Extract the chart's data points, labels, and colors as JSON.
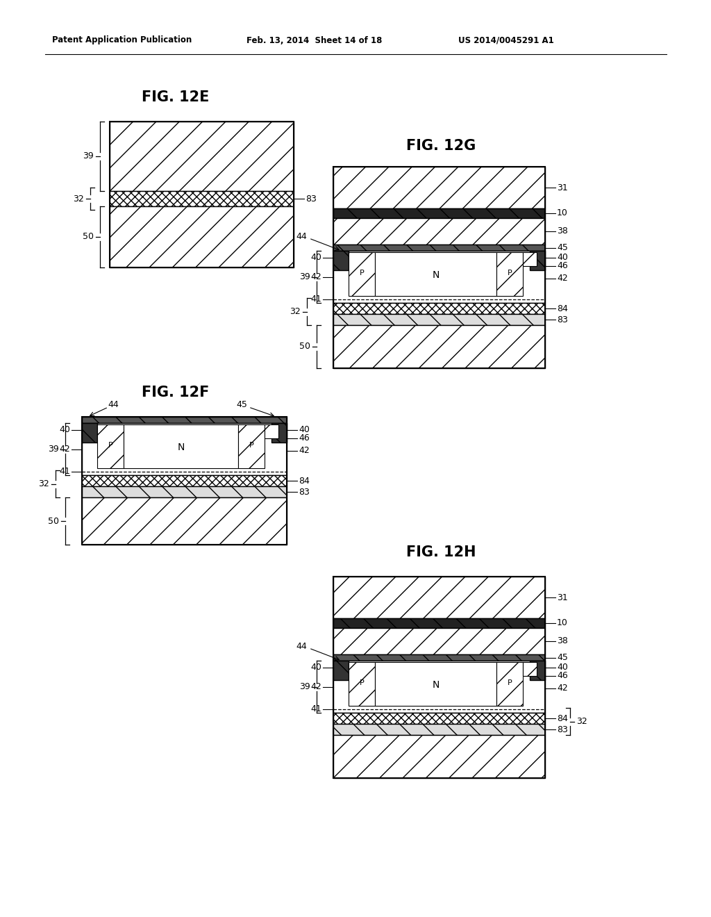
{
  "header_left": "Patent Application Publication",
  "header_mid": "Feb. 13, 2014  Sheet 14 of 18",
  "header_right": "US 2014/0045291 A1",
  "fig12E_title": "FIG. 12E",
  "fig12F_title": "FIG. 12F",
  "fig12G_title": "FIG. 12G",
  "fig12H_title": "FIG. 12H",
  "background": "#ffffff"
}
